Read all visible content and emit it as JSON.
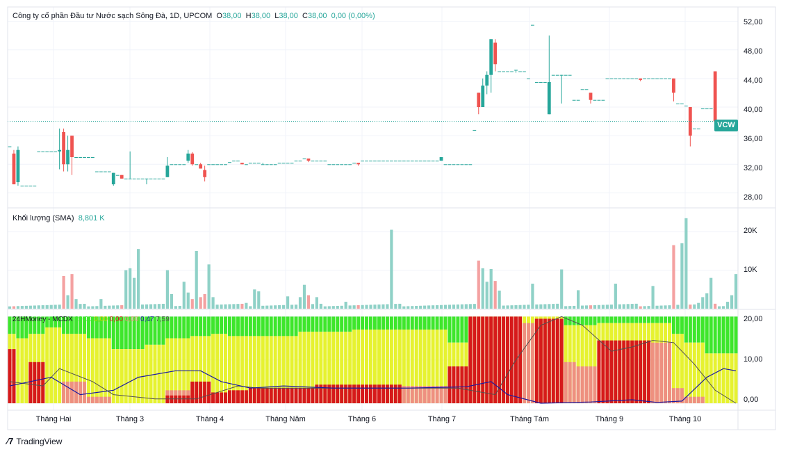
{
  "header": {
    "title": "Công ty cổ phần Đầu tư Nước sạch Sông Đà, 1D, UPCOM",
    "o_label": "O",
    "o_value": "38,00",
    "h_label": "H",
    "h_value": "38,00",
    "l_label": "L",
    "l_value": "38,00",
    "c_label": "C",
    "c_value": "38,00",
    "change": "0,00 (0,00%)"
  },
  "volume_panel": {
    "title": "Khối lượng (SMA)",
    "value": "8,801 K"
  },
  "indicator_panel": {
    "title": "24HMoney - MCDX",
    "values": [
      "20,00",
      "0,00",
      "0,00",
      "0,00",
      "0,47",
      "7,59"
    ]
  },
  "ticker": "VCW",
  "branding": "TradingView",
  "colors": {
    "up": "#26a69a",
    "down": "#ef5350",
    "vol_up": "#8fd1c7",
    "vol_down": "#f4a1a1",
    "mcdx_green": "#3ee62c",
    "mcdx_yellow": "#e6f230",
    "mcdx_red": "#d61a1a",
    "mcdx_salmon": "#ee9080",
    "line_blue": "#1a1aa0",
    "line_dark": "#505050"
  },
  "chart_data": {
    "type": "candlestick",
    "price_axis_ticks": [
      "52,00",
      "48,00",
      "44,00",
      "40,00",
      "36,00",
      "32,00",
      "28,00"
    ],
    "price_range": [
      26,
      54
    ],
    "volume_axis_ticks": [
      "20K",
      "10K"
    ],
    "volume_range": [
      0,
      26000
    ],
    "mcdx_axis_ticks": [
      "20,00",
      "10,00",
      "0,00"
    ],
    "mcdx_range": [
      -1.6,
      21.5
    ],
    "last_price": 38,
    "x_axis_labels": [
      "Tháng Hai",
      "Tháng 3",
      "Tháng 4",
      "Tháng Năm",
      "Tháng 6",
      "Tháng 7",
      "Tháng Tám",
      "Tháng 9",
      "Tháng 10"
    ],
    "candles": [
      [
        34.5,
        34.5,
        34.5,
        34.5
      ],
      [
        33.5,
        34,
        29.2,
        29.2
      ],
      [
        29.5,
        34.5,
        29,
        34
      ],
      [
        29,
        29,
        29,
        29
      ],
      [
        29,
        29,
        29,
        29
      ],
      [
        29,
        29,
        29,
        29
      ],
      [
        29,
        29,
        29,
        29
      ],
      [
        33.8,
        33.8,
        33.8,
        33.8
      ],
      [
        33.8,
        33.8,
        33.8,
        33.8
      ],
      [
        33.8,
        33.8,
        33.8,
        33.8
      ],
      [
        33.8,
        33.8,
        33.8,
        33.8
      ],
      [
        33.8,
        33.8,
        33.8,
        33.8
      ],
      [
        33.8,
        37,
        31.3,
        34
      ],
      [
        36.5,
        37,
        31,
        32
      ],
      [
        32,
        36,
        31,
        34
      ],
      [
        36,
        36,
        30.5,
        33
      ],
      [
        33,
        33,
        33,
        33
      ],
      [
        33,
        33,
        33,
        33
      ],
      [
        33,
        33,
        33,
        33
      ],
      [
        33,
        33,
        33,
        33
      ],
      [
        33,
        33,
        33,
        33
      ],
      [
        31,
        31,
        31,
        31
      ],
      [
        31,
        31,
        31,
        31
      ],
      [
        31,
        31,
        31,
        31
      ],
      [
        31,
        31,
        31,
        31
      ],
      [
        29.2,
        30.8,
        29,
        30.8
      ],
      [
        30.5,
        30.5,
        30.5,
        30.5
      ],
      [
        30.5,
        30.5,
        30,
        30
      ],
      [
        30,
        30,
        30,
        30
      ],
      [
        30,
        33.8,
        30,
        30
      ],
      [
        30,
        30,
        30,
        30
      ],
      [
        30,
        30,
        30,
        30
      ],
      [
        30,
        30,
        30,
        30
      ],
      [
        30,
        30,
        29.2,
        30
      ],
      [
        30,
        30,
        30,
        30
      ],
      [
        30,
        30,
        30,
        30
      ],
      [
        30,
        30,
        30,
        30
      ],
      [
        30,
        30,
        30,
        30
      ],
      [
        30.2,
        33,
        30.2,
        31.8
      ],
      [
        32,
        32,
        32,
        32
      ],
      [
        32,
        32,
        32,
        32
      ],
      [
        32,
        32,
        32,
        32
      ],
      [
        32,
        32,
        32,
        32
      ],
      [
        32.5,
        34,
        32.2,
        33.5
      ],
      [
        33.5,
        33.7,
        31.8,
        32
      ],
      [
        32,
        32,
        32,
        32
      ],
      [
        32,
        32.2,
        31.4,
        31.4
      ],
      [
        31.2,
        31.8,
        29.6,
        30.2
      ],
      [
        32,
        32,
        32,
        32
      ],
      [
        32,
        32,
        32,
        32
      ],
      [
        32,
        32,
        32,
        32
      ],
      [
        32,
        32,
        32,
        32
      ],
      [
        32,
        32,
        32,
        32
      ],
      [
        32.3,
        32.3,
        32.3,
        32.3
      ],
      [
        32.5,
        32.5,
        32.5,
        32.5
      ],
      [
        32.5,
        32.5,
        32.5,
        32.5
      ],
      [
        32.2,
        32.2,
        32,
        32
      ],
      [
        32,
        32,
        32,
        32
      ],
      [
        32.2,
        32.2,
        32.2,
        32.2
      ],
      [
        32.2,
        32.2,
        32.2,
        32.2
      ],
      [
        32.2,
        32.2,
        32.2,
        32.2
      ],
      [
        32,
        32.2,
        32,
        32
      ],
      [
        32,
        32,
        32,
        32
      ],
      [
        32,
        32,
        32,
        32
      ],
      [
        32,
        32,
        32,
        32
      ],
      [
        32.2,
        32.2,
        32.2,
        32.2
      ],
      [
        32.2,
        32.2,
        32.2,
        32.2
      ],
      [
        32.2,
        32.2,
        32.2,
        32.2
      ],
      [
        32.2,
        32.2,
        32.2,
        32.2
      ],
      [
        32.5,
        32.5,
        32.5,
        32.5
      ],
      [
        32.5,
        32.5,
        32.5,
        32.5
      ],
      [
        32.8,
        32.8,
        32.8,
        32.8
      ],
      [
        32.8,
        32.8,
        32.3,
        32.5
      ],
      [
        32.5,
        32.5,
        32.5,
        32.5
      ],
      [
        32.5,
        32.5,
        32.5,
        32.5
      ],
      [
        32.5,
        32.5,
        32.5,
        32.5
      ],
      [
        32.5,
        32.5,
        32.5,
        32.5
      ],
      [
        32,
        32,
        32,
        32
      ],
      [
        32,
        32,
        32,
        32
      ],
      [
        32,
        32,
        32,
        32
      ],
      [
        32,
        32,
        32,
        32
      ],
      [
        32,
        32,
        32,
        32
      ],
      [
        32,
        32,
        32,
        32
      ],
      [
        32.2,
        32.2,
        32.2,
        32.2
      ],
      [
        32.2,
        32.2,
        31.8,
        32
      ],
      [
        32.5,
        32.5,
        32.5,
        32.5
      ],
      [
        32.5,
        32.5,
        32.5,
        32.5
      ],
      [
        32.5,
        32.5,
        32.5,
        32.5
      ],
      [
        32.5,
        32.5,
        32.5,
        32.5
      ],
      [
        32.5,
        32.5,
        32.5,
        32.5
      ],
      [
        32.5,
        32.5,
        32.5,
        32.5
      ],
      [
        32.5,
        32.5,
        32.5,
        32.5
      ],
      [
        32.5,
        32.5,
        32.5,
        32.5
      ],
      [
        32.5,
        32.5,
        32.5,
        32.5
      ],
      [
        32.5,
        32.5,
        32.5,
        32.5
      ],
      [
        32.5,
        32.5,
        32.5,
        32.5
      ],
      [
        32.5,
        32.5,
        32.5,
        32.5
      ],
      [
        32.5,
        32.5,
        32.5,
        32.5
      ],
      [
        32.5,
        32.5,
        32.5,
        32.5
      ],
      [
        32.5,
        32.5,
        32.5,
        32.5
      ],
      [
        32.5,
        32.5,
        32.5,
        32.5
      ],
      [
        32.5,
        32.5,
        32.5,
        32.5
      ],
      [
        32.5,
        32.5,
        32.5,
        32.5
      ],
      [
        32.5,
        32.5,
        32.5,
        32.5
      ],
      [
        32.5,
        33,
        32.5,
        33
      ],
      [
        32,
        32,
        32,
        32
      ],
      [
        32,
        32,
        32,
        32
      ],
      [
        32,
        32,
        32,
        32
      ],
      [
        32,
        32,
        32,
        32
      ],
      [
        32,
        32,
        32,
        32
      ],
      [
        32,
        32,
        32,
        32
      ],
      [
        32,
        32,
        32,
        32
      ],
      [
        36.8,
        36.8,
        36.8,
        36.8
      ],
      [
        42,
        42,
        39,
        40
      ],
      [
        40,
        44,
        40,
        43
      ],
      [
        43,
        45,
        41.8,
        44.5
      ],
      [
        44.5,
        49.5,
        42,
        49.5
      ],
      [
        49,
        49.5,
        45,
        46
      ],
      [
        45,
        45,
        45,
        45
      ],
      [
        45,
        45,
        45,
        45
      ],
      [
        45,
        45,
        45,
        45
      ],
      [
        45,
        45,
        45,
        45
      ],
      [
        45.2,
        45.2,
        44.8,
        45.2
      ],
      [
        45,
        45,
        45,
        45
      ],
      [
        45,
        45,
        45,
        45
      ],
      [
        44,
        44,
        44,
        44
      ],
      [
        51.5,
        51.5,
        51.5,
        51.5
      ],
      [
        43.5,
        43.5,
        43.5,
        43.5
      ],
      [
        43.5,
        43.5,
        43.5,
        43.5
      ],
      [
        43.5,
        43.5,
        43.5,
        43.5
      ],
      [
        39,
        50,
        39,
        43.5
      ],
      [
        44.5,
        44.5,
        44.5,
        44.5
      ],
      [
        44.5,
        44.5,
        44.5,
        44.5
      ],
      [
        44.5,
        44.5,
        40.5,
        44.5
      ],
      [
        44.5,
        44.5,
        44.5,
        44.5
      ],
      [
        44.5,
        44.5,
        44.5,
        44.5
      ],
      [
        41,
        41,
        41,
        41
      ],
      [
        41,
        41,
        41,
        41
      ],
      [
        42.5,
        42.5,
        42.5,
        42.5
      ],
      [
        42.5,
        42.5,
        42.5,
        42.5
      ],
      [
        42,
        42,
        40.5,
        41
      ],
      [
        41,
        41,
        41,
        41
      ],
      [
        41,
        41,
        41,
        41
      ],
      [
        41,
        41,
        41,
        41
      ],
      [
        44,
        44,
        44,
        44
      ],
      [
        44,
        44,
        44,
        44
      ],
      [
        44,
        44,
        44,
        44
      ],
      [
        44,
        44,
        44,
        44
      ],
      [
        44,
        44,
        44,
        44
      ],
      [
        44,
        44,
        44,
        44
      ],
      [
        44,
        44,
        44,
        44
      ],
      [
        44,
        44,
        44,
        44
      ],
      [
        44,
        44,
        43.6,
        43.8
      ],
      [
        44,
        44,
        44,
        44
      ],
      [
        44,
        44,
        44,
        44
      ],
      [
        44,
        44,
        44,
        44
      ],
      [
        44,
        44,
        44,
        44
      ],
      [
        44,
        44,
        44,
        44
      ],
      [
        44,
        44,
        44,
        44
      ],
      [
        44,
        44,
        44,
        44
      ],
      [
        44,
        44,
        40.8,
        42
      ],
      [
        40.5,
        40.5,
        40.5,
        40.5
      ],
      [
        40.5,
        40.5,
        40.5,
        40.5
      ],
      [
        40.2,
        40.2,
        40.2,
        40.2
      ],
      [
        40,
        40,
        34.5,
        36
      ],
      [
        37,
        37,
        37,
        37
      ],
      [
        37,
        37,
        37,
        37
      ],
      [
        39.8,
        39.8,
        39.8,
        39.8
      ],
      [
        39.8,
        39.8,
        39.8,
        39.8
      ],
      [
        39.8,
        39.8,
        39.8,
        39.8
      ],
      [
        45,
        45,
        37,
        38
      ],
      [
        38,
        38,
        38,
        38
      ],
      [
        38,
        38,
        38,
        38
      ],
      [
        38,
        38,
        38,
        38
      ],
      [
        38,
        38,
        38,
        38
      ],
      [
        38,
        38,
        38,
        38
      ]
    ]
  }
}
